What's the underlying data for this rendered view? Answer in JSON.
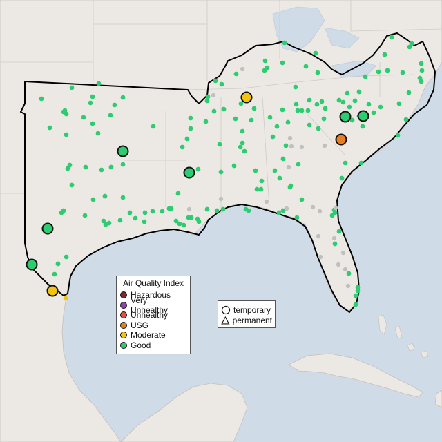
{
  "legend": {
    "title": "Air Quality Index",
    "categories": [
      {
        "label": "Hazardous",
        "color": "#7a2a2a"
      },
      {
        "label": "Very Unhealthy",
        "color": "#8e44ad"
      },
      {
        "label": "Unhealthy",
        "color": "#e74c3c"
      },
      {
        "label": "USG",
        "color": "#e67e22"
      },
      {
        "label": "Moderate",
        "color": "#f1c40f"
      },
      {
        "label": "Good",
        "color": "#2ecc71"
      }
    ],
    "types": [
      {
        "label": "temporary",
        "shape": "circle"
      },
      {
        "label": "permanent",
        "shape": "triangle"
      }
    ]
  },
  "colors": {
    "water": "#cfdbe7",
    "land": "#ece9e5",
    "border": "#c4bfbb",
    "good": "#2ecc71",
    "moderate": "#f1c40f",
    "usg": "#e67e22",
    "no_data": "#c0c0c0"
  }
}
